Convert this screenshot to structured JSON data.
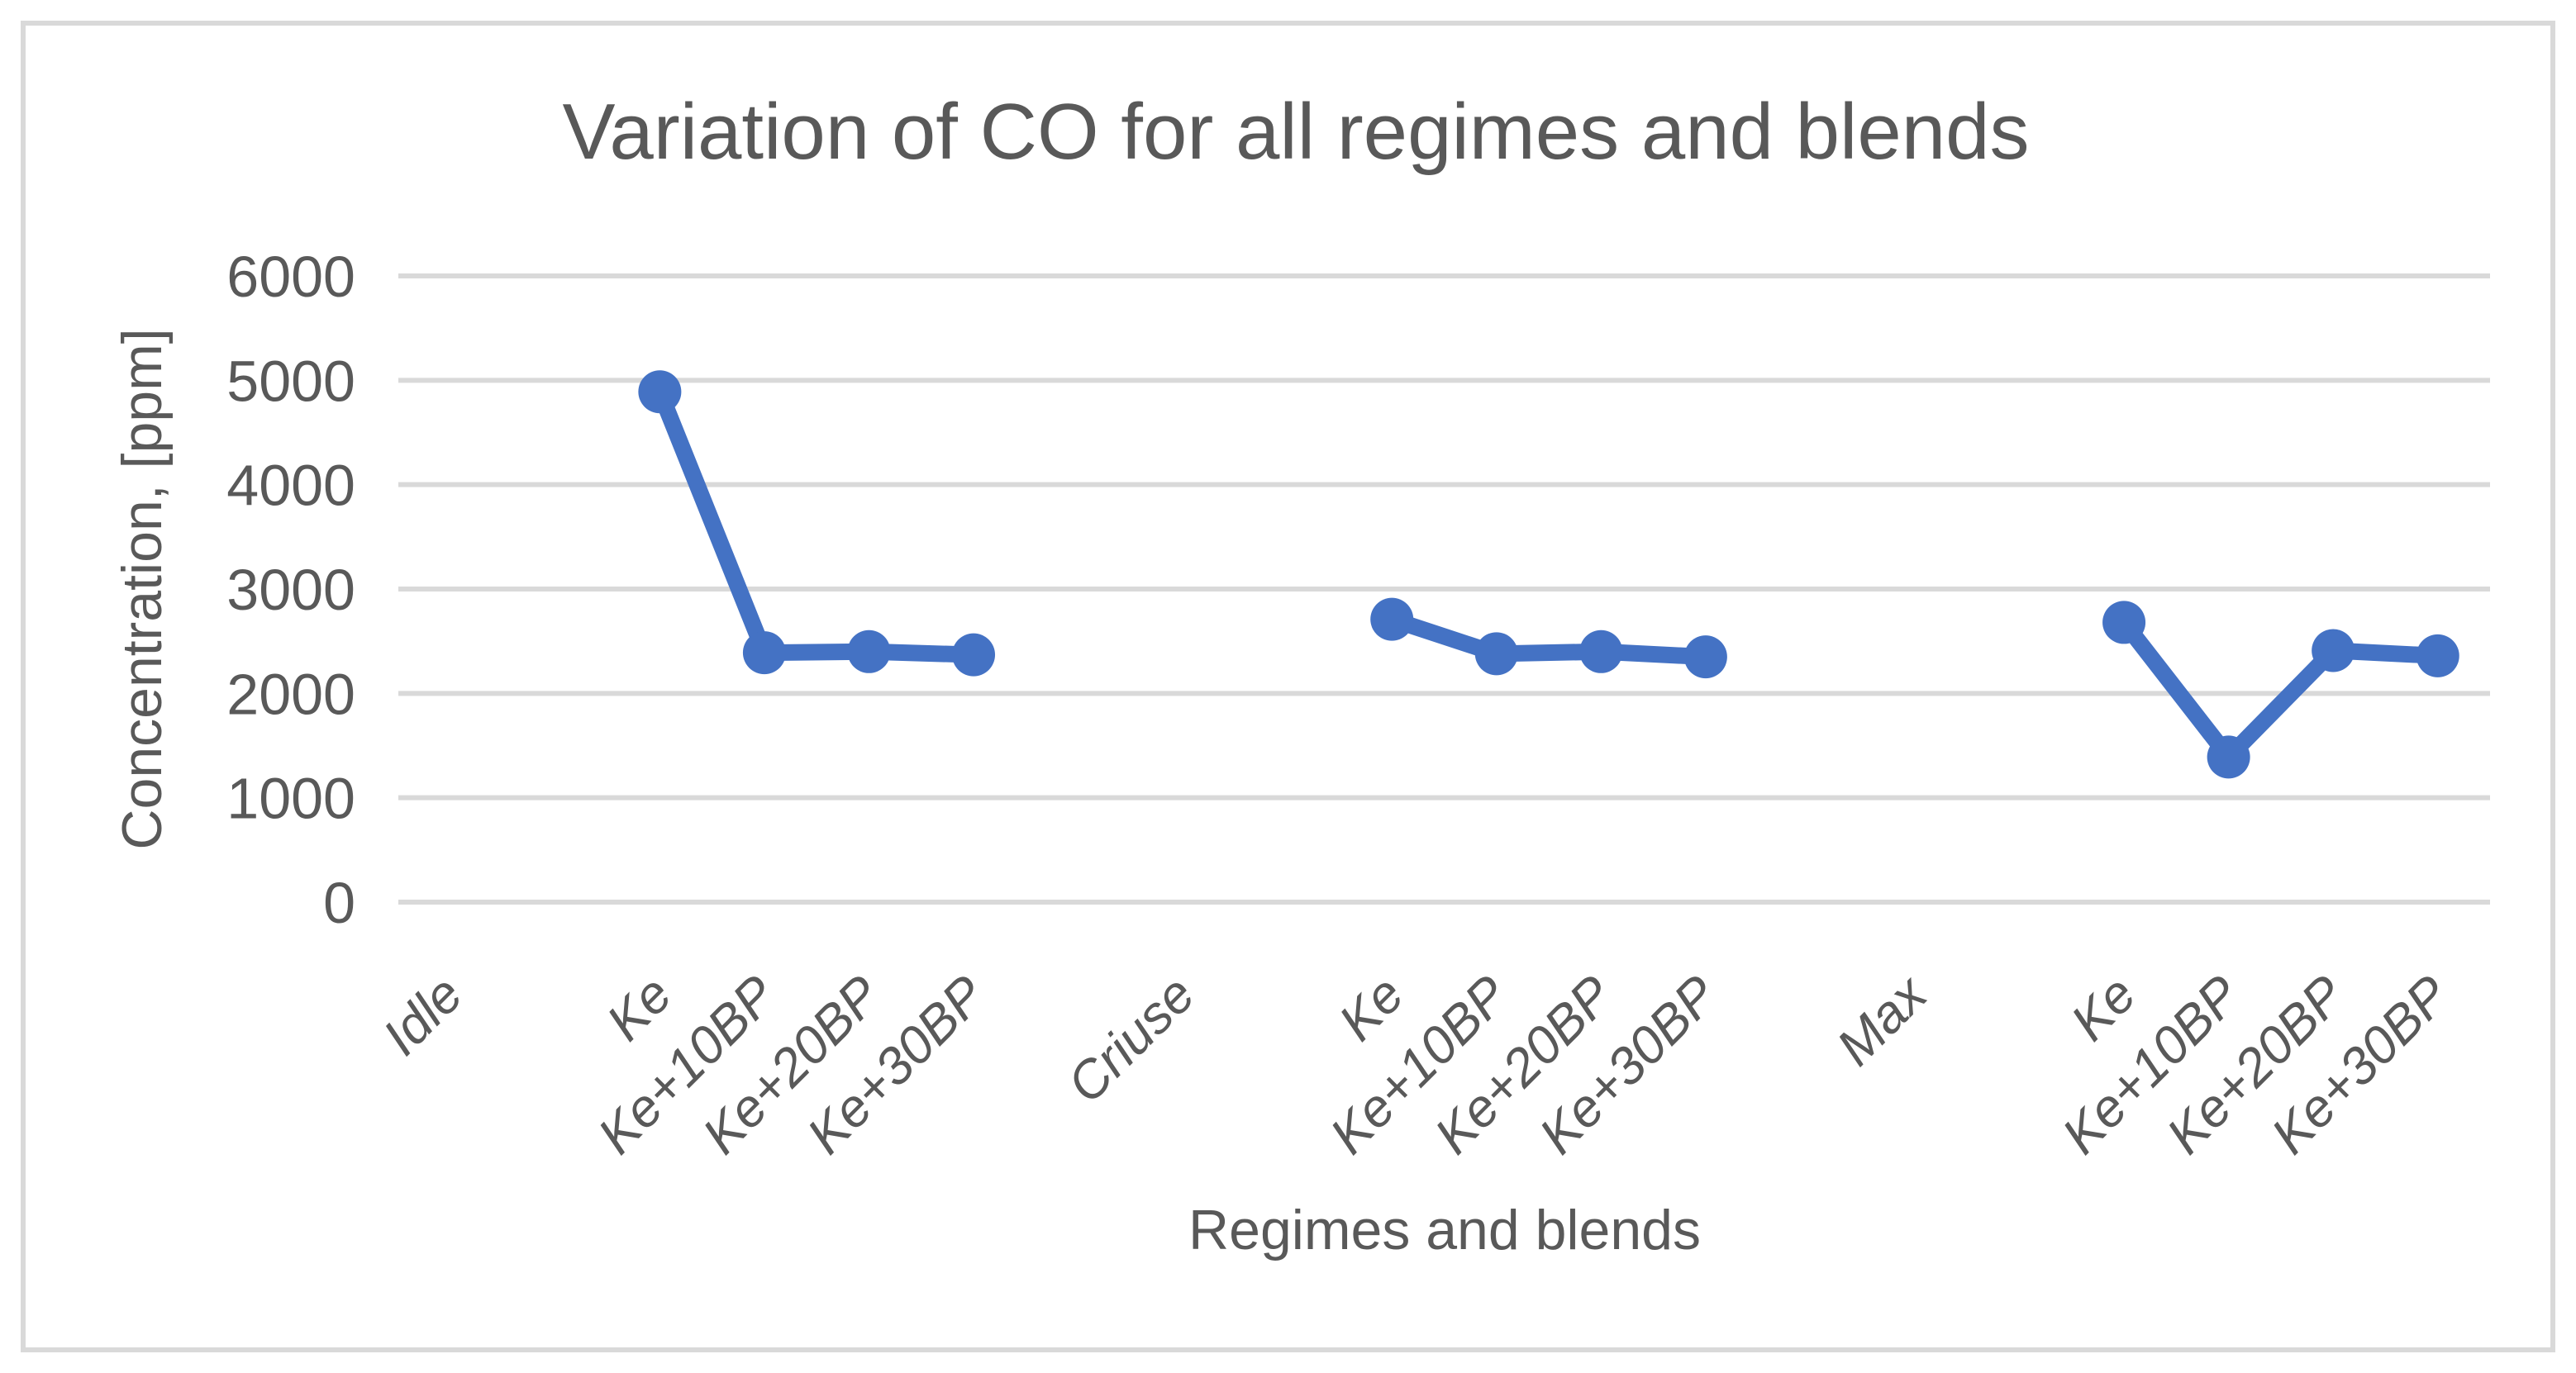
{
  "figure": {
    "background": "#FFFFFF",
    "border_color": "#D9D9D9"
  },
  "chart_data": {
    "type": "line",
    "title": "Variation of CO for all regimes and blends",
    "xlabel": "Regimes and blends",
    "ylabel": "Concentration, [ppm]",
    "categories": [
      "Idle",
      "",
      "Ke",
      "Ke+10BP",
      "Ke+20BP",
      "Ke+30BP",
      "",
      "Criuse",
      "",
      "Ke",
      "Ke+10BP",
      "Ke+20BP",
      "Ke+30BP",
      "",
      "Max",
      "",
      "Ke",
      "Ke+10BP",
      "Ke+20BP",
      "Ke+30BP"
    ],
    "series": [
      {
        "name": "CO",
        "color": "#4472C4",
        "values": [
          null,
          null,
          4890,
          2390,
          2400,
          2370,
          null,
          null,
          null,
          2710,
          2380,
          2400,
          2350,
          null,
          null,
          null,
          2680,
          1390,
          2410,
          2360
        ]
      }
    ],
    "ylim": [
      0,
      6000
    ],
    "yticks": [
      0,
      1000,
      2000,
      3000,
      4000,
      5000,
      6000
    ],
    "grid": "horizontal",
    "gridline_color": "#D9D9D9",
    "text_color": "#595959",
    "legend": "none",
    "marker": "circle",
    "line_width": 20,
    "marker_radius": 26
  }
}
